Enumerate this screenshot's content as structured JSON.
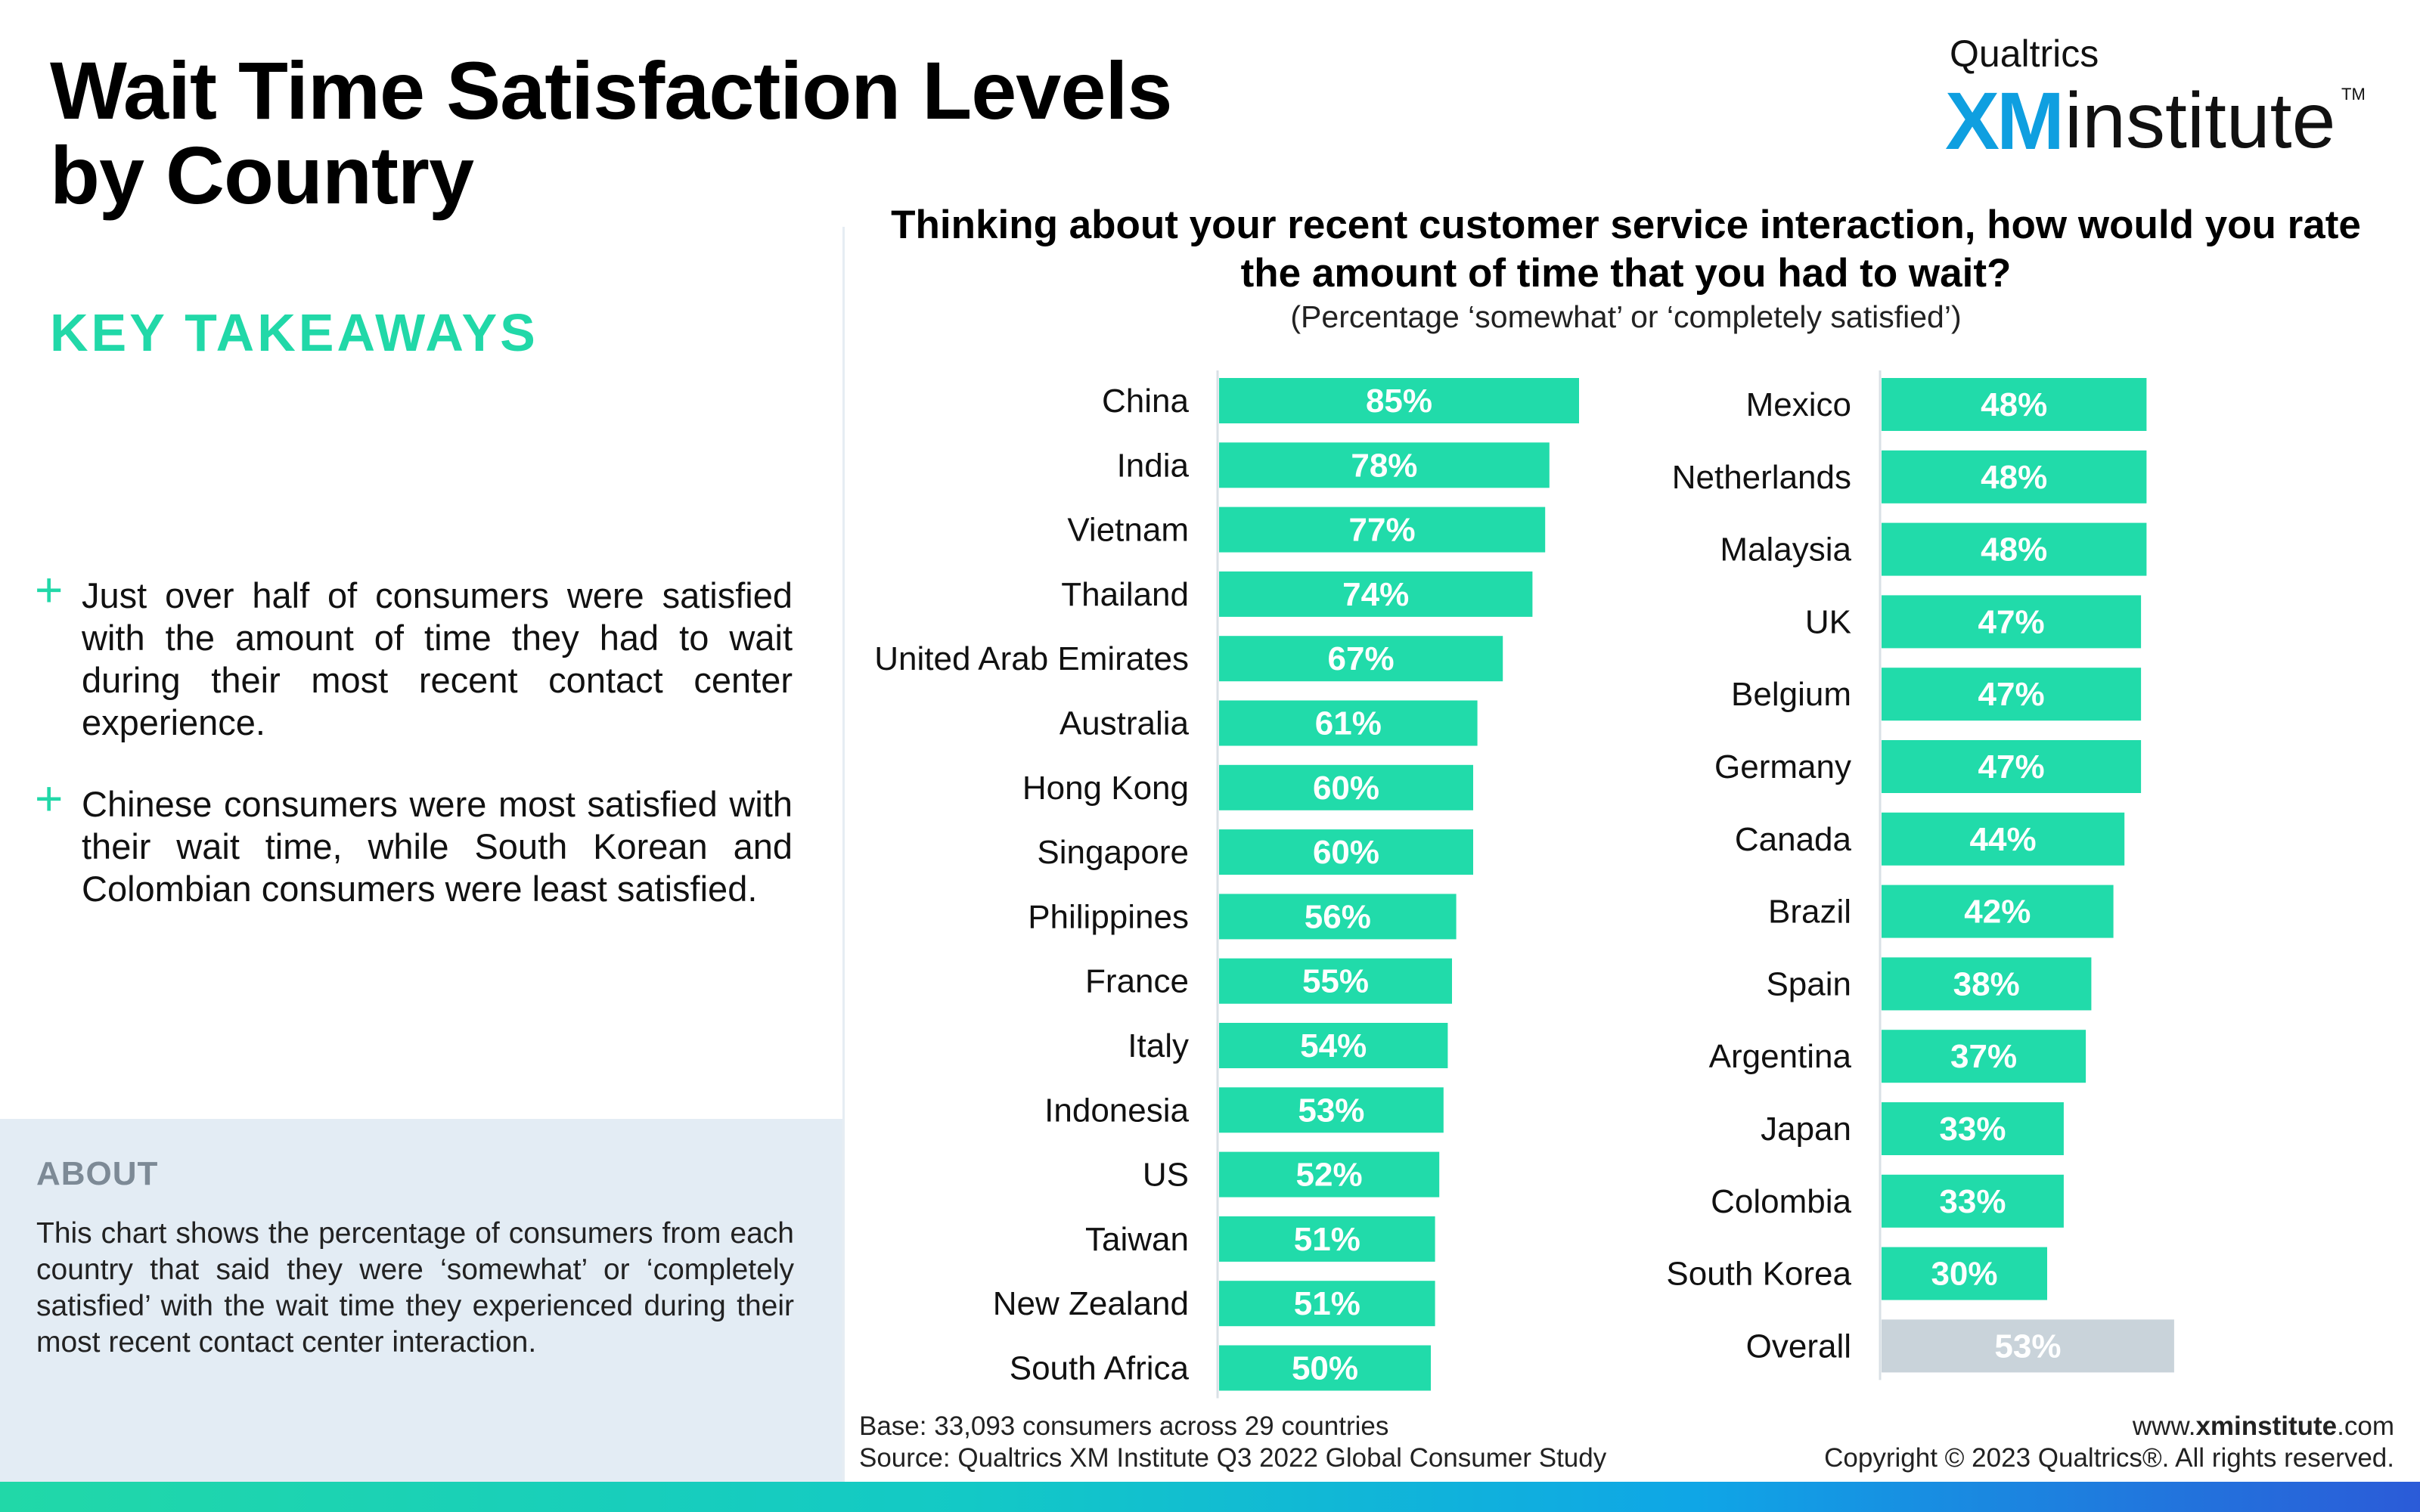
{
  "header": {
    "title_line1": "Wait Time Satisfaction Levels",
    "title_line2": "by Country"
  },
  "logo": {
    "company": "Qualtrics",
    "xm": "XM",
    "institute": "institute",
    "tm": "TM"
  },
  "takeaways": {
    "heading": "KEY TAKEAWAYS",
    "items": [
      {
        "symbol": "+",
        "text": "Just over half of consumers were satisfied with the amount of time they had to wait during their most recent contact center experience."
      },
      {
        "symbol": "+",
        "text": "Chinese consumers were most satisfied with their wait time, while South Korean and Colombian consumers were least satisfied."
      }
    ]
  },
  "about": {
    "title": "ABOUT",
    "text": "This chart shows the percentage of consumers from each country that said they were ‘somewhat’ or ‘completely satisfied’ with the wait time they experienced during their most recent contact center interaction."
  },
  "chart_data": {
    "type": "bar",
    "orientation": "horizontal",
    "title": "Thinking about your recent customer service interaction, how would you rate the amount of time that you had to wait?",
    "subtitle": "(Percentage ‘somewhat’ or ‘completely satisfied’)",
    "unit": "%",
    "columns": [
      {
        "categories": [
          "China",
          "India",
          "Vietnam",
          "Thailand",
          "United Arab Emirates",
          "Australia",
          "Hong Kong",
          "Singapore",
          "Philippines",
          "France",
          "Italy",
          "Indonesia",
          "US",
          "Taiwan",
          "New Zealand",
          "South Africa"
        ],
        "values": [
          85,
          78,
          77,
          74,
          67,
          61,
          60,
          60,
          56,
          55,
          54,
          53,
          52,
          51,
          51,
          50
        ]
      },
      {
        "categories": [
          "Mexico",
          "Netherlands",
          "Malaysia",
          "UK",
          "Belgium",
          "Germany",
          "Canada",
          "Brazil",
          "Spain",
          "Argentina",
          "Japan",
          "Colombia",
          "South Korea",
          "Overall"
        ],
        "values": [
          48,
          48,
          48,
          47,
          47,
          47,
          44,
          42,
          38,
          37,
          33,
          33,
          30,
          53
        ]
      }
    ],
    "colors": {
      "bar": "#21dbaa",
      "overall": "#c9d3da",
      "label_text": "#ffffff"
    }
  },
  "footer": {
    "base": "Base: 33,093 consumers across 29 countries",
    "source": "Source: Qualtrics XM Institute Q3 2022 Global Consumer Study",
    "site_prefix": "www.",
    "site_bold": "xminstitute",
    "site_suffix": ".com",
    "copyright": "Copyright © 2023 Qualtrics®. All rights reserved."
  }
}
